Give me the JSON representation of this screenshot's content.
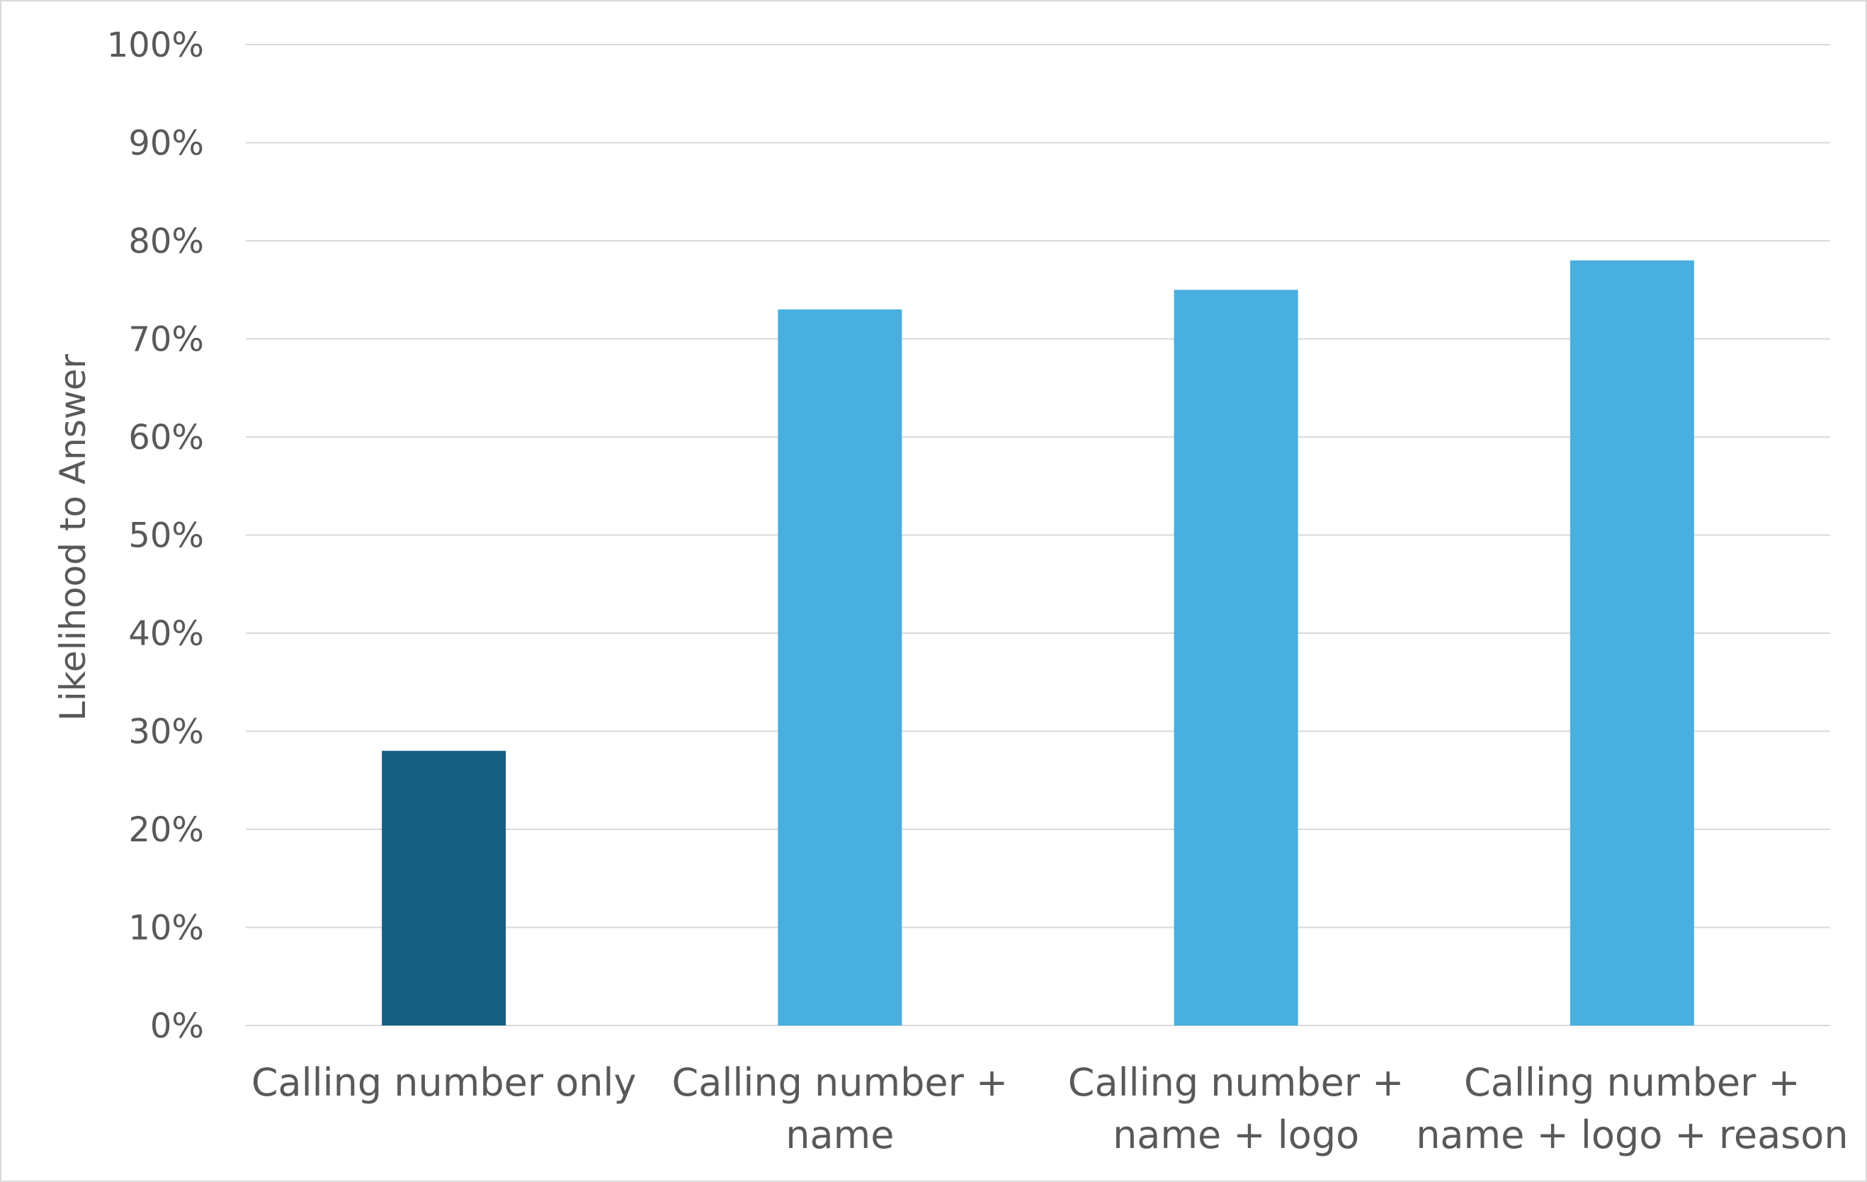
{
  "chart_data": {
    "type": "bar",
    "title": "",
    "xlabel": "",
    "ylabel": "Likelihood to Answer",
    "categories": [
      [
        "Calling number only"
      ],
      [
        "Calling number +",
        "name"
      ],
      [
        "Calling number +",
        "name + logo"
      ],
      [
        "Calling number +",
        "name + logo + reason"
      ]
    ],
    "values": [
      28,
      73,
      75,
      78
    ],
    "colors": [
      "#165f80",
      "#48afdf",
      "#48afdf",
      "#48afdf"
    ],
    "ylim": [
      0,
      100
    ],
    "yticks": [
      0,
      10,
      20,
      30,
      40,
      50,
      60,
      70,
      80,
      90,
      100
    ],
    "ytick_suffix": "%",
    "grid": true,
    "gridline_color": "#d9d9d9",
    "legend": "none"
  }
}
